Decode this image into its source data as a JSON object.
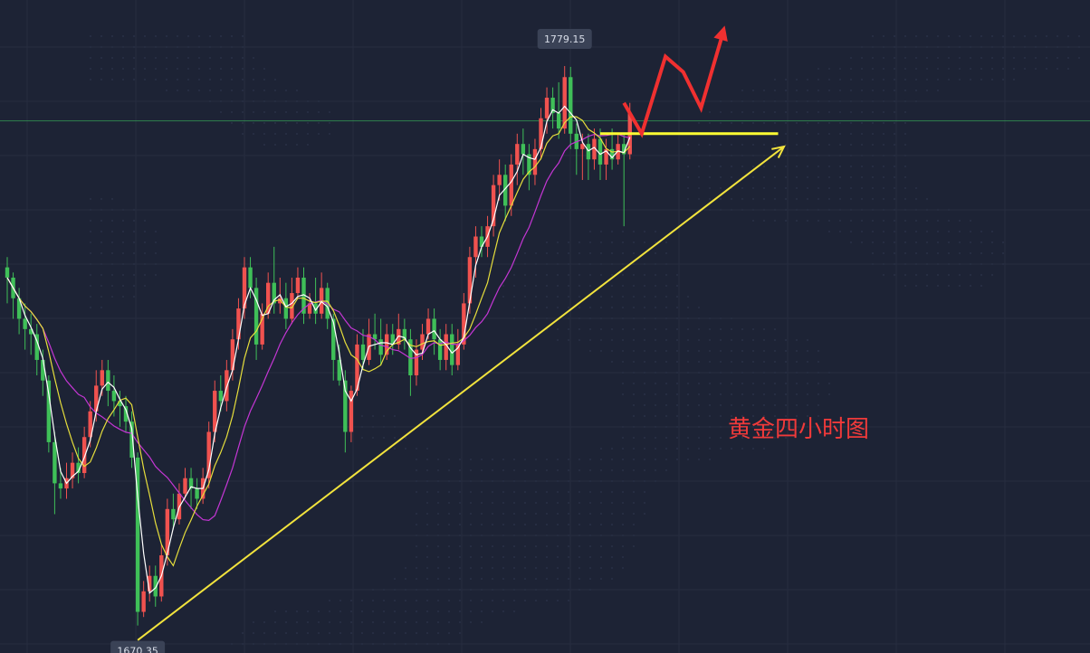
{
  "chart_data": {
    "type": "candlestick",
    "title": "",
    "annotation": "黄金四小时图",
    "grid": true,
    "high_label": "1779.15",
    "low_label": "1670.35",
    "high": 1779.15,
    "low": 1670.35,
    "y_range": [
      1665,
      1792
    ],
    "colors": {
      "background": "#1d2335",
      "up": "#f0524f",
      "down": "#3fbf58",
      "ma_fast": "#ffffff",
      "ma_mid": "#e6de3c",
      "ma_slow": "#c436d4",
      "trendline": "#f2e33d",
      "support": "#ffff33",
      "arrow": "#f03030",
      "resistance": "#3bbf5f"
    },
    "candles": [
      [
        1740,
        1738,
        1742,
        1733
      ],
      [
        1738,
        1734,
        1739,
        1730
      ],
      [
        1734,
        1730,
        1736,
        1727
      ],
      [
        1730,
        1728,
        1733,
        1724
      ],
      [
        1728,
        1727,
        1731,
        1723
      ],
      [
        1727,
        1722,
        1729,
        1719
      ],
      [
        1722,
        1718,
        1724,
        1715
      ],
      [
        1718,
        1706,
        1719,
        1704
      ],
      [
        1706,
        1698,
        1708,
        1692
      ],
      [
        1698,
        1697,
        1701,
        1695
      ],
      [
        1697,
        1699,
        1702,
        1695
      ],
      [
        1699,
        1702,
        1704,
        1697
      ],
      [
        1702,
        1700,
        1705,
        1698
      ],
      [
        1700,
        1707,
        1709,
        1699
      ],
      [
        1707,
        1712,
        1714,
        1705
      ],
      [
        1712,
        1717,
        1720,
        1710
      ],
      [
        1717,
        1720,
        1722,
        1715
      ],
      [
        1720,
        1716,
        1722,
        1713
      ],
      [
        1716,
        1714,
        1719,
        1711
      ],
      [
        1714,
        1713,
        1716,
        1709
      ],
      [
        1713,
        1710,
        1715,
        1708
      ],
      [
        1710,
        1703,
        1712,
        1701
      ],
      [
        1703,
        1673,
        1704,
        1670.35
      ],
      [
        1673,
        1677,
        1679,
        1672
      ],
      [
        1677,
        1680,
        1682,
        1675
      ],
      [
        1680,
        1676,
        1682,
        1674
      ],
      [
        1676,
        1684,
        1686,
        1675
      ],
      [
        1684,
        1693,
        1695,
        1682
      ],
      [
        1693,
        1691,
        1696,
        1689
      ],
      [
        1691,
        1696,
        1698,
        1690
      ],
      [
        1696,
        1699,
        1701,
        1695
      ],
      [
        1699,
        1697,
        1701,
        1693
      ],
      [
        1697,
        1695,
        1699,
        1693
      ],
      [
        1695,
        1699,
        1701,
        1694
      ],
      [
        1699,
        1708,
        1710,
        1697
      ],
      [
        1708,
        1716,
        1718,
        1706
      ],
      [
        1716,
        1714,
        1719,
        1712
      ],
      [
        1714,
        1720,
        1722,
        1712
      ],
      [
        1720,
        1726,
        1728,
        1718
      ],
      [
        1726,
        1732,
        1734,
        1724
      ],
      [
        1732,
        1740,
        1742,
        1730
      ],
      [
        1740,
        1736,
        1742,
        1734
      ],
      [
        1736,
        1725,
        1738,
        1722
      ],
      [
        1725,
        1731,
        1733,
        1724
      ],
      [
        1731,
        1737,
        1739,
        1730
      ],
      [
        1737,
        1733,
        1744,
        1731
      ],
      [
        1733,
        1734,
        1738,
        1731
      ],
      [
        1734,
        1730,
        1737,
        1728
      ],
      [
        1730,
        1735,
        1738,
        1729
      ],
      [
        1735,
        1738,
        1740,
        1734
      ],
      [
        1738,
        1731,
        1740,
        1729
      ],
      [
        1731,
        1733,
        1735,
        1730
      ],
      [
        1733,
        1731,
        1738,
        1729
      ],
      [
        1731,
        1736,
        1739,
        1730
      ],
      [
        1736,
        1730,
        1737,
        1728
      ],
      [
        1730,
        1722,
        1731,
        1718
      ],
      [
        1722,
        1718,
        1725,
        1717
      ],
      [
        1718,
        1708,
        1720,
        1704
      ],
      [
        1708,
        1716,
        1717,
        1706
      ],
      [
        1716,
        1725,
        1727,
        1715
      ],
      [
        1725,
        1722,
        1728,
        1720
      ],
      [
        1722,
        1727,
        1730,
        1721
      ],
      [
        1727,
        1726,
        1731,
        1724
      ],
      [
        1726,
        1723,
        1730,
        1721
      ],
      [
        1723,
        1727,
        1729,
        1722
      ],
      [
        1727,
        1725,
        1729,
        1723
      ],
      [
        1725,
        1728,
        1731,
        1724
      ],
      [
        1728,
        1726,
        1730,
        1724
      ],
      [
        1726,
        1719,
        1728,
        1715
      ],
      [
        1719,
        1724,
        1726,
        1717
      ],
      [
        1724,
        1727,
        1729,
        1722
      ],
      [
        1727,
        1730,
        1732,
        1726
      ],
      [
        1730,
        1726,
        1732,
        1723
      ],
      [
        1726,
        1722,
        1728,
        1720
      ],
      [
        1722,
        1727,
        1729,
        1720
      ],
      [
        1727,
        1721,
        1729,
        1719
      ],
      [
        1721,
        1725,
        1728,
        1720
      ],
      [
        1725,
        1733,
        1735,
        1724
      ],
      [
        1733,
        1742,
        1744,
        1731
      ],
      [
        1742,
        1746,
        1748,
        1738
      ],
      [
        1746,
        1744,
        1748,
        1742
      ],
      [
        1744,
        1748,
        1750,
        1742
      ],
      [
        1748,
        1756,
        1758,
        1746
      ],
      [
        1756,
        1758,
        1761,
        1753
      ],
      [
        1758,
        1752,
        1760,
        1749
      ],
      [
        1752,
        1760,
        1762,
        1750
      ],
      [
        1760,
        1764,
        1766,
        1756
      ],
      [
        1764,
        1762,
        1767,
        1758
      ],
      [
        1762,
        1758,
        1764,
        1755
      ],
      [
        1758,
        1763,
        1765,
        1756
      ],
      [
        1763,
        1769,
        1771,
        1761
      ],
      [
        1769,
        1773,
        1775,
        1766
      ],
      [
        1773,
        1770,
        1775,
        1767
      ],
      [
        1770,
        1767,
        1776,
        1765
      ],
      [
        1767,
        1777,
        1779.15,
        1766
      ],
      [
        1777,
        1766,
        1779,
        1763
      ],
      [
        1766,
        1763,
        1768,
        1758
      ],
      [
        1763,
        1764,
        1766,
        1757
      ],
      [
        1764,
        1761,
        1766,
        1757
      ],
      [
        1761,
        1765,
        1767,
        1759
      ],
      [
        1765,
        1760,
        1767,
        1757
      ],
      [
        1760,
        1763,
        1765,
        1757
      ],
      [
        1763,
        1761,
        1767,
        1759
      ],
      [
        1761,
        1764,
        1766,
        1760
      ],
      [
        1764,
        1762,
        1766,
        1748
      ],
      [
        1762,
        1770,
        1772,
        1761
      ]
    ],
    "trendline": [
      [
        22,
        1667.5
      ],
      [
        131,
        1763.5
      ]
    ],
    "support_line": {
      "from_index": 100,
      "to_index": 130,
      "value": 1766
    },
    "resistance_line": 1768.5,
    "forecast_arrow": [
      [
        104,
        1772
      ],
      [
        107,
        1766
      ],
      [
        111,
        1781
      ],
      [
        114,
        1778
      ],
      [
        117,
        1771
      ],
      [
        121,
        1787
      ]
    ]
  }
}
